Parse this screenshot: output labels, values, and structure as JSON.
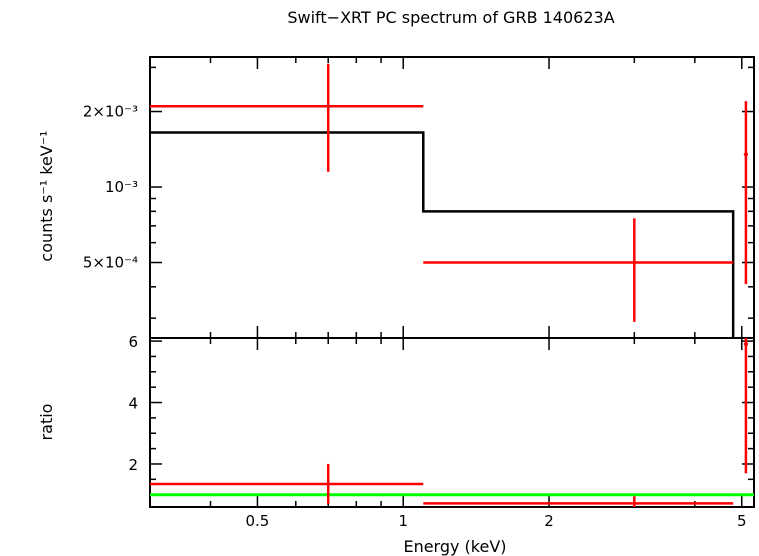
{
  "chart_data": [
    {
      "panel": "spectrum",
      "type": "line",
      "title": "Swift−XRT PC spectrum of GRB 140623A",
      "xlabel": "",
      "ylabel": "counts s⁻¹ keV⁻¹",
      "x_scale": "log",
      "y_scale": "log",
      "xlim": [
        0.3,
        5.3
      ],
      "ylim": [
        0.00025,
        0.0033
      ],
      "y_ticks": [
        {
          "value": 0.002,
          "label": "2×10⁻³"
        },
        {
          "value": 0.001,
          "label": "10⁻³"
        },
        {
          "value": 0.0005,
          "label": "5×10⁻⁴"
        }
      ],
      "data_points": [
        {
          "x": 0.7,
          "x_low": 0.3,
          "x_high": 1.1,
          "y": 0.0021,
          "y_low": 0.00115,
          "y_high": 0.0031
        },
        {
          "x": 3.0,
          "x_low": 1.1,
          "x_high": 4.8,
          "y": 0.0005,
          "y_low": 0.00029,
          "y_high": 0.00075
        },
        {
          "x": 5.1,
          "x_low": 5.05,
          "x_high": 5.15,
          "y": 0.00135,
          "y_low": 0.00041,
          "y_high": 0.0022
        }
      ],
      "model_steps": [
        {
          "x_low": 0.3,
          "x_high": 1.1,
          "y": 0.00165
        },
        {
          "x_low": 1.1,
          "x_high": 4.8,
          "y": 0.0008
        }
      ],
      "colors": {
        "data": "#ff0000",
        "model": "#000000"
      }
    },
    {
      "panel": "ratio",
      "type": "scatter",
      "xlabel": "Energy (keV)",
      "ylabel": "ratio",
      "x_scale": "log",
      "xlim": [
        0.3,
        5.3
      ],
      "ylim": [
        0.6,
        6.1
      ],
      "x_ticks": [
        {
          "value": 0.5,
          "label": "0.5"
        },
        {
          "value": 1,
          "label": "1"
        },
        {
          "value": 2,
          "label": "2"
        },
        {
          "value": 5,
          "label": "5"
        }
      ],
      "y_ticks": [
        {
          "value": 2,
          "label": "2"
        },
        {
          "value": 4,
          "label": "4"
        },
        {
          "value": 6,
          "label": "6"
        }
      ],
      "data_points": [
        {
          "x": 0.7,
          "x_low": 0.3,
          "x_high": 1.1,
          "y": 1.35,
          "y_low": 0.7,
          "y_high": 2.0
        },
        {
          "x": 3.0,
          "x_low": 1.1,
          "x_high": 4.8,
          "y": 0.72,
          "y_low": 0.6,
          "y_high": 0.95
        },
        {
          "x": 5.1,
          "x_low": 5.05,
          "x_high": 5.15,
          "y": 5.9,
          "y_low": 1.7,
          "y_high": 6.1
        }
      ],
      "reference_line": 1.0,
      "colors": {
        "data": "#ff0000",
        "reference": "#00ff00"
      }
    }
  ]
}
